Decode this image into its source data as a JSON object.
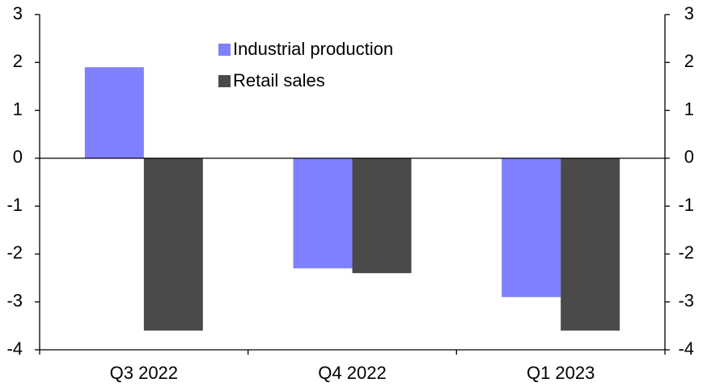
{
  "chart_data": {
    "type": "bar",
    "categories": [
      "Q3 2022",
      "Q4 2022",
      "Q1 2023"
    ],
    "series": [
      {
        "name": "Industrial production",
        "color": "#8080ff",
        "values": [
          1.9,
          -2.3,
          -2.9
        ]
      },
      {
        "name": "Retail sales",
        "color": "#4a4a4a",
        "values": [
          -3.6,
          -2.4,
          -3.6
        ]
      }
    ],
    "ylim": [
      -4,
      3
    ],
    "yticks": [
      -4,
      -3,
      -2,
      -1,
      0,
      1,
      2,
      3
    ],
    "y2lim": [
      -4,
      3
    ],
    "y2ticks": [
      -4,
      -3,
      -2,
      -1,
      0,
      1,
      2,
      3
    ],
    "grid": false,
    "legend": "top-center"
  }
}
